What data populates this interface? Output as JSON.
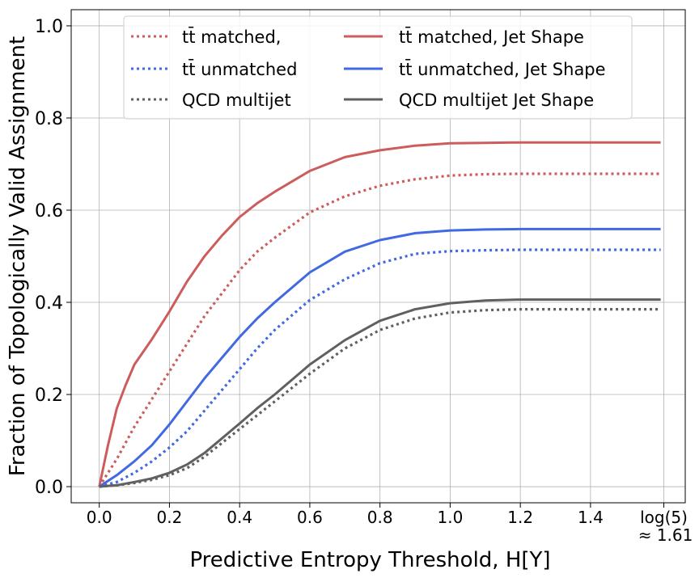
{
  "chart_data": {
    "type": "line",
    "title": "",
    "xlabel": "Predictive Entropy Threshold, H[Y]",
    "ylabel": "Fraction of Topologically Valid Assignment",
    "xlim": [
      -0.08,
      1.67
    ],
    "ylim": [
      -0.035,
      1.035
    ],
    "xticks": [
      {
        "value": 0.0,
        "label": "0.0"
      },
      {
        "value": 0.2,
        "label": "0.2"
      },
      {
        "value": 0.4,
        "label": "0.4"
      },
      {
        "value": 0.6,
        "label": "0.6"
      },
      {
        "value": 0.8,
        "label": "0.8"
      },
      {
        "value": 1.0,
        "label": "1.0"
      },
      {
        "value": 1.2,
        "label": "1.2"
      },
      {
        "value": 1.4,
        "label": "1.4"
      },
      {
        "value": 1.609,
        "label": "log(5)",
        "sublabel": "≈ 1.61"
      }
    ],
    "yticks": [
      {
        "value": 0.0,
        "label": "0.0"
      },
      {
        "value": 0.2,
        "label": "0.2"
      },
      {
        "value": 0.4,
        "label": "0.4"
      },
      {
        "value": 0.6,
        "label": "0.6"
      },
      {
        "value": 0.8,
        "label": "0.8"
      },
      {
        "value": 1.0,
        "label": "1.0"
      }
    ],
    "grid": true,
    "legend_placement": "upper center",
    "series": [
      {
        "name": "tt̄ matched,",
        "color": "#cd5c5c",
        "style": "dotted",
        "x": [
          0,
          0.05,
          0.1,
          0.15,
          0.2,
          0.25,
          0.3,
          0.35,
          0.4,
          0.45,
          0.5,
          0.6,
          0.7,
          0.8,
          0.9,
          1.0,
          1.1,
          1.2,
          1.4,
          1.6
        ],
        "y": [
          0,
          0.06,
          0.13,
          0.19,
          0.25,
          0.31,
          0.37,
          0.42,
          0.47,
          0.51,
          0.54,
          0.595,
          0.63,
          0.653,
          0.667,
          0.675,
          0.678,
          0.679,
          0.679,
          0.679
        ]
      },
      {
        "name": "tt̄ unmatched",
        "color": "#4169e1",
        "style": "dotted",
        "x": [
          0,
          0.05,
          0.1,
          0.15,
          0.2,
          0.25,
          0.3,
          0.35,
          0.4,
          0.45,
          0.5,
          0.6,
          0.7,
          0.8,
          0.9,
          1.0,
          1.1,
          1.2,
          1.4,
          1.6
        ],
        "y": [
          0,
          0.01,
          0.03,
          0.055,
          0.085,
          0.12,
          0.165,
          0.21,
          0.255,
          0.3,
          0.34,
          0.405,
          0.45,
          0.485,
          0.505,
          0.511,
          0.513,
          0.514,
          0.514,
          0.514
        ]
      },
      {
        "name": "QCD multijet",
        "color": "#606060",
        "style": "dotted",
        "x": [
          0,
          0.05,
          0.1,
          0.15,
          0.2,
          0.25,
          0.3,
          0.35,
          0.4,
          0.45,
          0.5,
          0.6,
          0.7,
          0.8,
          0.9,
          1.0,
          1.1,
          1.2,
          1.4,
          1.6
        ],
        "y": [
          0,
          0.003,
          0.008,
          0.015,
          0.025,
          0.04,
          0.065,
          0.095,
          0.125,
          0.155,
          0.185,
          0.245,
          0.3,
          0.34,
          0.365,
          0.378,
          0.383,
          0.385,
          0.385,
          0.385
        ]
      },
      {
        "name": "tt̄ matched, Jet Shape",
        "color": "#cd5c5c",
        "style": "solid",
        "x": [
          0,
          0.025,
          0.05,
          0.075,
          0.1,
          0.15,
          0.2,
          0.25,
          0.3,
          0.35,
          0.4,
          0.45,
          0.5,
          0.6,
          0.7,
          0.8,
          0.9,
          1.0,
          1.1,
          1.2,
          1.4,
          1.6
        ],
        "y": [
          0,
          0.09,
          0.17,
          0.22,
          0.265,
          0.32,
          0.38,
          0.445,
          0.5,
          0.545,
          0.585,
          0.615,
          0.64,
          0.685,
          0.715,
          0.73,
          0.74,
          0.745,
          0.746,
          0.747,
          0.747,
          0.747
        ]
      },
      {
        "name": "tt̄ unmatched, Jet Shape",
        "color": "#4169e1",
        "style": "solid",
        "x": [
          0,
          0.05,
          0.1,
          0.15,
          0.2,
          0.25,
          0.3,
          0.35,
          0.4,
          0.45,
          0.5,
          0.6,
          0.7,
          0.8,
          0.9,
          1.0,
          1.1,
          1.2,
          1.4,
          1.6
        ],
        "y": [
          0,
          0.025,
          0.055,
          0.09,
          0.135,
          0.185,
          0.235,
          0.28,
          0.325,
          0.365,
          0.4,
          0.465,
          0.51,
          0.535,
          0.55,
          0.556,
          0.558,
          0.559,
          0.559,
          0.559
        ]
      },
      {
        "name": "QCD multijet Jet Shape",
        "color": "#606060",
        "style": "solid",
        "x": [
          0,
          0.05,
          0.1,
          0.15,
          0.2,
          0.25,
          0.3,
          0.35,
          0.4,
          0.45,
          0.5,
          0.6,
          0.7,
          0.8,
          0.9,
          1.0,
          1.1,
          1.2,
          1.4,
          1.6
        ],
        "y": [
          0,
          0.003,
          0.01,
          0.018,
          0.03,
          0.048,
          0.073,
          0.105,
          0.137,
          0.17,
          0.2,
          0.265,
          0.318,
          0.36,
          0.385,
          0.398,
          0.404,
          0.406,
          0.406,
          0.406
        ]
      }
    ]
  }
}
